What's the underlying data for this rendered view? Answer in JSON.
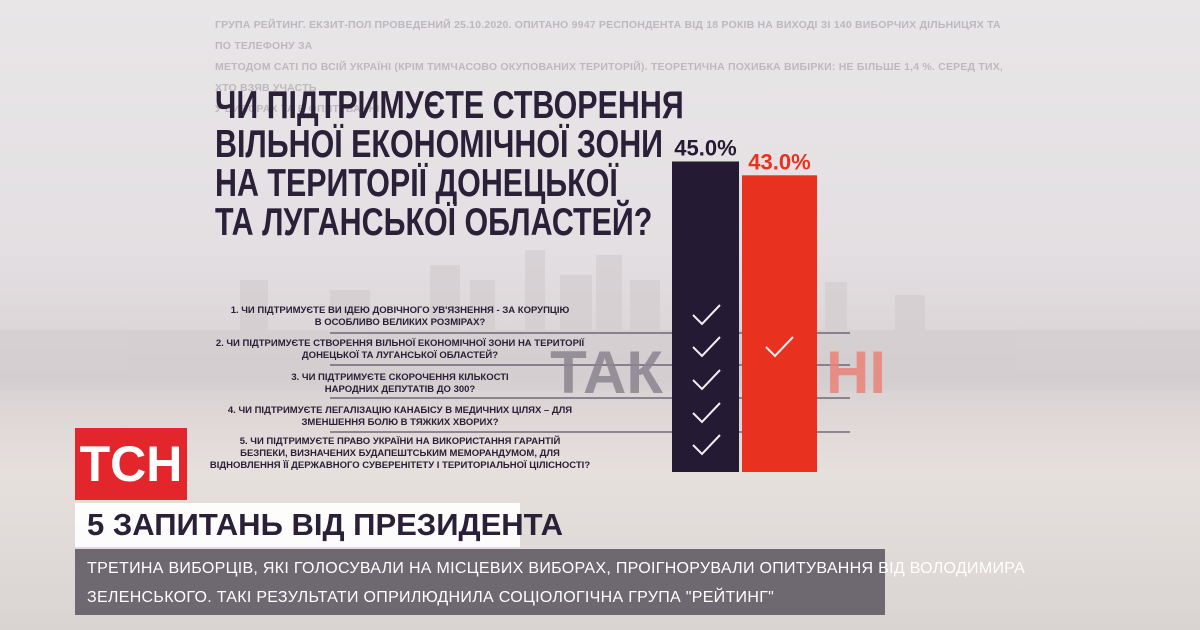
{
  "source_note": "ГРУПА РЕЙТИНГ. ЕКЗИТ-ПОЛ ПРОВЕДЕНИЙ 25.10.2020. ОПИТАНО 9947 РЕСПОНДЕНТА ВІД 18 РОКІВ НА ВИХОДІ ЗІ 140 ВИБОРЧИХ ДІЛЬНИЦЯХ ТА ПО ТЕЛЕФОНУ ЗА\nМЕТОДОМ CATI ПО ВСІЙ УКРАЇНІ (КРІМ ТИМЧАСОВО ОКУПОВАНИХ ТЕРИТОРІЙ). ТЕОРЕТИЧНА ПОХИБКА ВИБІРКИ: НЕ БІЛЬШЕ 1,4 %. СЕРЕД ТИХ, ХТО ВЗЯВ УЧАСТЬ\nУ ВИБОРАХ ТА В ОПИТУВАННІ",
  "chart_data": {
    "type": "bar",
    "title": "ЧИ ПІДТРИМУЄТЕ СТВОРЕННЯ\nВІЛЬНОЇ ЕКОНОМІЧНОЇ ЗОНИ\nНА ТЕРИТОРІЇ ДОНЕЦЬКОЇ\nТА ЛУГАНСЬКОЇ ОБЛАСТЕЙ?",
    "categories": [
      "ТАК",
      "НІ"
    ],
    "values": [
      45,
      43
    ],
    "value_labels": [
      "45.0%",
      "43.0%"
    ],
    "colors": [
      "#241a33",
      "#e8321f"
    ]
  },
  "questions": [
    "1. ЧИ ПІДТРИМУЄТЕ ВИ ІДЕЮ ДОВІЧНОГО УВ'ЯЗНЕННЯ - ЗА КОРУПЦІЮ\nВ ОСОБЛИВО ВЕЛИКИХ РОЗМІРАХ?",
    "2. ЧИ ПІДТРИМУЄТЕ СТВОРЕННЯ ВІЛЬНОЇ ЕКОНОМІЧНОЇ ЗОНИ НА ТЕРИТОРІЇ\nДОНЕЦЬКОЇ ТА ЛУГАНСЬКОЇ ОБЛАСТЕЙ?",
    "3. ЧИ ПІДТРИМУЄТЕ СКОРОЧЕННЯ КІЛЬКОСТІ\nНАРОДНИХ ДЕПУТАТІВ ДО 300?",
    "4. ЧИ ПІДТРИМУЄТЕ ЛЕГАЛІЗАЦІЮ КАНАБІСУ В МЕДИЧНИХ ЦІЛЯХ – ДЛЯ\nЗМЕНШЕННЯ БОЛЮ В ТЯЖКИХ ХВОРИХ?",
    "5. ЧИ ПІДТРИМУЄТЕ ПРАВО УКРАЇНИ НА ВИКОРИСТАННЯ ГАРАНТІЙ\nБЕЗПЕКИ, ВИЗНАЧЕНИХ БУДАПЕШТСЬКИМ МЕМОРАНДУМОМ, ДЛЯ\nВІДНОВЛЕННЯ ЇЇ ДЕРЖАВНОГО СУВЕРЕНІТЕТУ І ТЕРИТОРІАЛЬНОЇ ЦІЛІСНОСТІ?"
  ],
  "logo": "ТСН",
  "headline": "5 ЗАПИТАНЬ ВІД ПРЕЗИДЕНТА",
  "subtitle": "ТРЕТИНА ВИБОРЦІВ, ЯКІ ГОЛОСУВАЛИ НА МІСЦЕВИХ ВИБОРАХ, ПРОІГНОРУВАЛИ ОПИТУВАННЯ ВІД ВОЛОДИМИРА\nЗЕЛЕНСЬКОГО. ТАКІ РЕЗУЛЬТАТИ ОПРИЛЮДНИЛА СОЦІОЛОГІЧНА ГРУПА \"РЕЙТИНГ\""
}
